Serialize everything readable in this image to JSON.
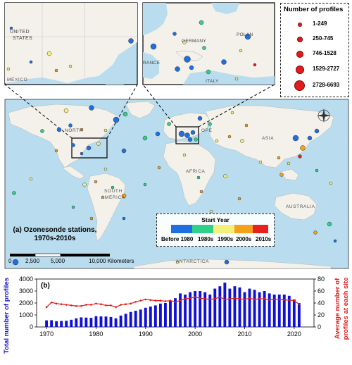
{
  "map": {
    "panel_label": "(a) Ozonesonde stations,",
    "panel_label_2": "1970s-2010s",
    "place_labels": {
      "united_states": "UNITED",
      "united_states_2": "STATES",
      "mexico": "MÉXICO",
      "germany": "GERMANY",
      "poland": "POLAN",
      "france": "RANCE",
      "italy": "ITALY",
      "north": "NORTH",
      "europe": "OPE",
      "asia": "ASIA",
      "africa": "AFRICA",
      "south_america": "SOUTH",
      "south_america_2": "AMERICA",
      "australia": "AUSTRALIA",
      "antarctica": "ANTARCTICA"
    },
    "scale_bar": {
      "ticks": [
        "0",
        "2,500",
        "5,000",
        "10,000 Kilometers"
      ]
    },
    "compass": "compass-rose"
  },
  "legend_profiles": {
    "title": "Number of profiles",
    "entries": [
      "1-249",
      "250-745",
      "746-1528",
      "1529-2727",
      "2728-6693"
    ]
  },
  "legend_start_year": {
    "title": "Start Year",
    "labels": [
      "Before 1980",
      "1980s",
      "1990s",
      "2000s",
      "2010s"
    ],
    "colors": [
      "#1f6fe0",
      "#2fd08a",
      "#f5f07a",
      "#f5a11a",
      "#e82020"
    ]
  },
  "colors": {
    "ocean": "#b9ddef",
    "land": "#f3f1ea",
    "bar": "#1010d8",
    "line": "#e61717"
  },
  "chart_data": {
    "type": "bar",
    "panel_label": "(b)",
    "xlabel": "",
    "ylabel": "Total number of profiles",
    "ylabel_right": "Average number of profiles at each site",
    "ylim": [
      0,
      4000
    ],
    "ylim_right": [
      0,
      80
    ],
    "y_ticks": [
      "0",
      "1000",
      "2000",
      "3000",
      "4000"
    ],
    "y_ticks_right": [
      "0",
      "20",
      "40",
      "60",
      "80"
    ],
    "x_ticks": [
      "1970",
      "1980",
      "1990",
      "2000",
      "2010",
      "2020"
    ],
    "x": [
      1970,
      1971,
      1972,
      1973,
      1974,
      1975,
      1976,
      1977,
      1978,
      1979,
      1980,
      1981,
      1982,
      1983,
      1984,
      1985,
      1986,
      1987,
      1988,
      1989,
      1990,
      1991,
      1992,
      1993,
      1994,
      1995,
      1996,
      1997,
      1998,
      1999,
      2000,
      2001,
      2002,
      2003,
      2004,
      2005,
      2006,
      2007,
      2008,
      2009,
      2010,
      2011,
      2012,
      2013,
      2014,
      2015,
      2016,
      2017,
      2018,
      2019,
      2020,
      2021
    ],
    "series": [
      {
        "name": "Total number of profiles",
        "kind": "bar",
        "axis": "left",
        "values": [
          550,
          560,
          480,
          500,
          520,
          600,
          720,
          800,
          780,
          760,
          900,
          880,
          870,
          830,
          720,
          950,
          1100,
          1250,
          1350,
          1450,
          1600,
          1700,
          1800,
          1950,
          2000,
          2200,
          2400,
          2800,
          2700,
          2900,
          3000,
          3000,
          2900,
          2700,
          3200,
          3400,
          3700,
          3200,
          3400,
          3300,
          2900,
          3200,
          3100,
          2900,
          3000,
          2800,
          2700,
          2700,
          2700,
          2600,
          2300,
          2000
        ]
      },
      {
        "name": "Average number of profiles at each site",
        "kind": "line",
        "axis": "right",
        "values": [
          33,
          41,
          39,
          38,
          37,
          36,
          35,
          35,
          37,
          37,
          39,
          38,
          36,
          36,
          33,
          37,
          38,
          39,
          42,
          44,
          46,
          45,
          44,
          44,
          43,
          44,
          42,
          44,
          47,
          48,
          50,
          48,
          47,
          46,
          47,
          50,
          46,
          47,
          48,
          47,
          46,
          48,
          46,
          47,
          47,
          45,
          46,
          46,
          45,
          45,
          44,
          38
        ]
      }
    ]
  }
}
